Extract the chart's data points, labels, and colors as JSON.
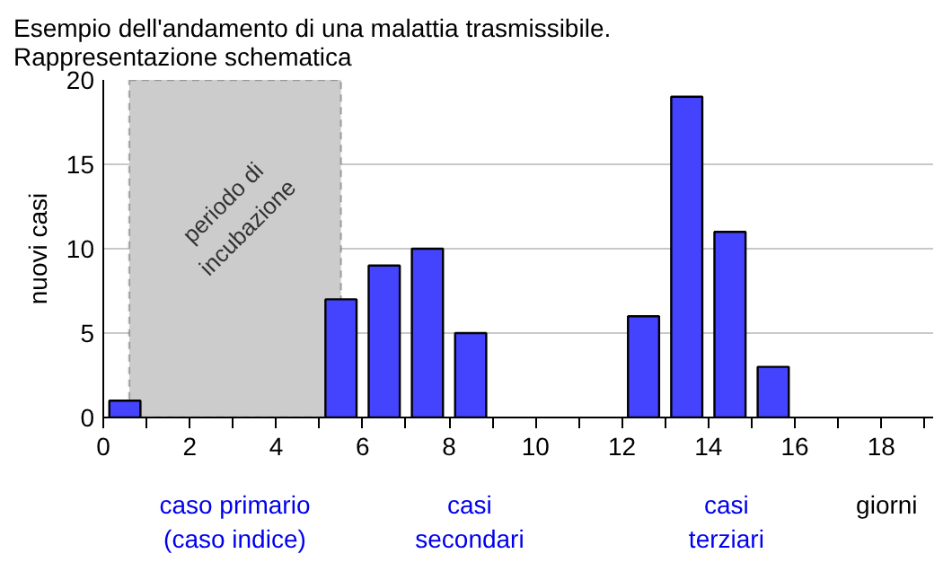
{
  "chart_data": {
    "type": "bar",
    "title": "Esempio dell'andamento di una malattia trasmissibile.\nRappresentazione schematica",
    "xlabel": "giorni",
    "ylabel": "nuovi casi",
    "x": [
      0.5,
      5.5,
      6.5,
      7.5,
      8.5,
      12.5,
      13.5,
      14.5,
      15.5
    ],
    "values": [
      1,
      7,
      9,
      10,
      5,
      6,
      19,
      11,
      3
    ],
    "color": "#4444ff",
    "xlim": [
      0,
      19.2
    ],
    "ylim": [
      0,
      20
    ],
    "xticks": [
      0,
      {
        "value": 1,
        "label": null
      },
      2,
      {
        "value": 3,
        "label": null
      },
      4,
      {
        "value": 5,
        "label": null
      },
      6,
      {
        "value": 7,
        "label": null
      },
      8,
      {
        "value": 9,
        "label": null
      },
      10,
      {
        "value": 11,
        "label": null
      },
      12,
      {
        "value": 13,
        "label": null
      },
      14,
      {
        "value": 15,
        "label": null
      },
      16,
      {
        "value": 17,
        "label": null
      },
      18,
      {
        "value": 19,
        "label": null
      }
    ],
    "yticks": [
      0,
      5,
      10,
      15,
      20
    ],
    "grid": "y",
    "bands": [
      {
        "axis": "x",
        "from": 0.6,
        "to": 5.5,
        "label": "periodo di\nincubazione",
        "color": "#cccccc"
      }
    ],
    "annotations": [
      "caso primario\n(caso indice)",
      "casi\nsecondari",
      "casi\nterziari"
    ]
  }
}
